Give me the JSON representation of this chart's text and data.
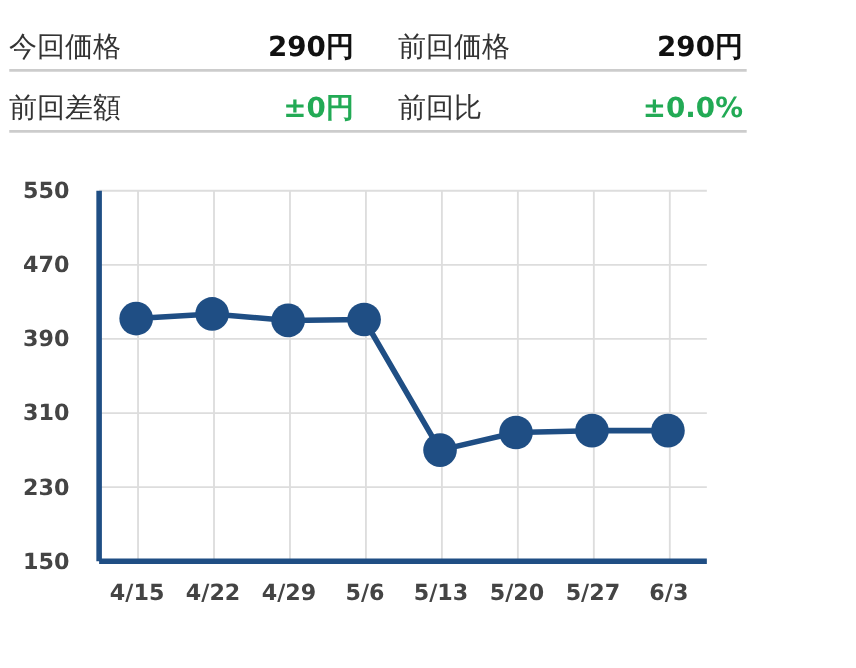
{
  "chart_data": {
    "type": "line",
    "annotations": [
      "今回価格",
      "290円",
      "前回価格",
      "290円",
      "前回差額",
      "±0円",
      "前回比",
      "±0.0%"
    ],
    "categories": [
      "4/15",
      "4/22",
      "4/29",
      "5/6",
      "5/13",
      "5/20",
      "5/27",
      "6/3"
    ],
    "series": [
      {
        "color": "#1f4e84",
        "values": [
          411,
          416,
          409,
          410,
          269,
          288,
          290,
          290
        ]
      }
    ],
    "ylim": [
      150,
      550
    ],
    "yticks": [
      150,
      230,
      310,
      390,
      470,
      550
    ],
    "grid": true,
    "marker": "circle",
    "line_style": "solid"
  }
}
